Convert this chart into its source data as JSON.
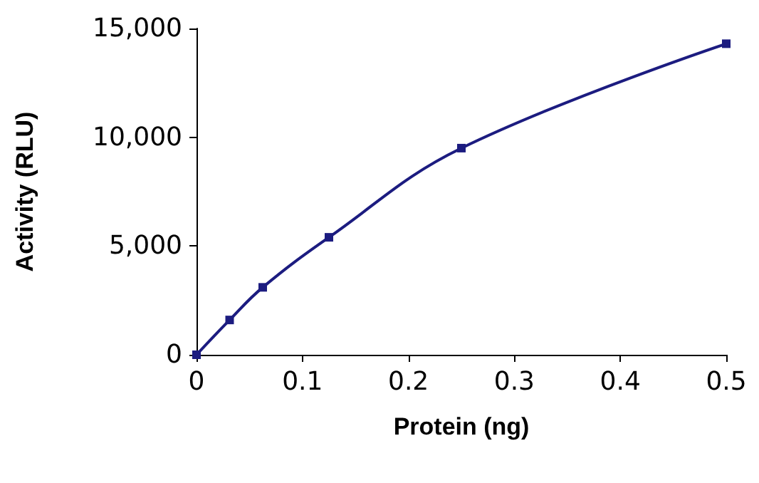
{
  "chart_data": {
    "type": "line",
    "xlabel": "Protein (ng)",
    "ylabel": "Activity (RLU)",
    "x": [
      0,
      0.03125,
      0.0625,
      0.125,
      0.25,
      0.5
    ],
    "series": [
      {
        "color": "#1c1c80",
        "values": [
          0,
          1600,
          3100,
          5400,
          9500,
          14300
        ]
      }
    ],
    "xlim": [
      0,
      0.5
    ],
    "xticks": [
      0,
      0.1,
      0.2,
      0.3,
      0.4,
      0.5
    ],
    "ylim": [
      0,
      15000
    ],
    "yticks": [
      {
        "value": 0,
        "label": "0"
      },
      {
        "value": 5000,
        "label": "5,000"
      },
      {
        "value": 10000,
        "label": "10,000"
      },
      {
        "value": 15000,
        "label": "15,000"
      }
    ],
    "grid": false,
    "marker": "square",
    "line_style": "solid"
  }
}
